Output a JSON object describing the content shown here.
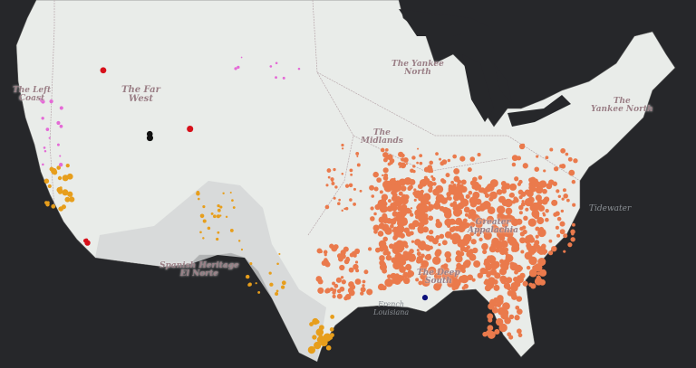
{
  "regions": [
    {
      "name": "The Left Coast",
      "line1": "The Left",
      "line2": "Coast"
    },
    {
      "name": "The Far West",
      "line1": "The Far",
      "line2": "West"
    },
    {
      "name": "The Yankee North (midwest)",
      "line1": "The Yankee",
      "line2": "North"
    },
    {
      "name": "The Midlands",
      "line1": "The",
      "line2": "Midlands"
    },
    {
      "name": "The Yankee North (east)",
      "line1": "The",
      "line2": "Yankee North"
    },
    {
      "name": "Greater Appalachia",
      "line1": "Greater",
      "line2": "Appalachia"
    },
    {
      "name": "The Deep South",
      "line1": "The Deep",
      "line2": "South"
    },
    {
      "name": "Tidewater",
      "line1": "Tidewater",
      "line2": ""
    },
    {
      "name": "Spanish Heritage El Norte",
      "line1": "Spanish Heritage",
      "line2": "El Norte"
    },
    {
      "name": "French Louisiana",
      "line1": "French",
      "line2": "Louisiana"
    }
  ],
  "colors": {
    "land": "#e9ece9",
    "el_norte_shade": "#d3d6d6",
    "water": "#26272a",
    "orange_dots": "#ea7a4c",
    "amber_dots": "#e79e1c",
    "red_dots": "#d7101a",
    "pink_dots": "#e46ad6",
    "navy_dots": "#0b0f7a",
    "black_dots": "#111111"
  }
}
